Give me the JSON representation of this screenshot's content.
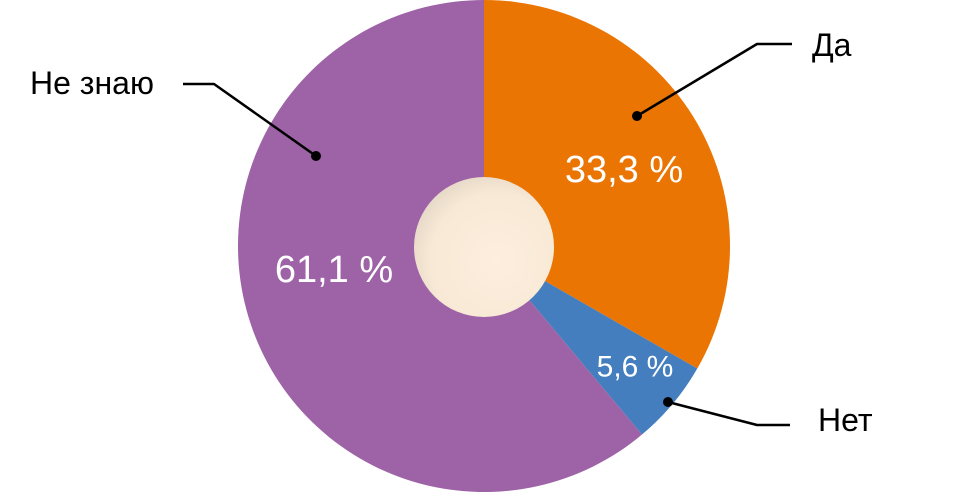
{
  "chart_data": {
    "type": "pie",
    "subtype": "donut",
    "title": "",
    "unit": "%",
    "decimal_separator": ",",
    "start_angle_deg": 0,
    "direction": "clockwise",
    "legend_position": "callouts",
    "background": "#FFFFFF",
    "inside_label_color": "#FFFFFF",
    "callout_text_color": "#000000",
    "callout_line_color": "#000000",
    "hole": {
      "color_center": "#FDEEDE",
      "color_mid": "#F8E9D6",
      "color_edge": "#D8CBBC"
    },
    "slices": [
      {
        "label": "Да",
        "value": 33.3,
        "pct_label": "33,3 %",
        "color": "#EA7503"
      },
      {
        "label": "Нет",
        "value": 5.6,
        "pct_label": "5,6 %",
        "color": "#447EBE"
      },
      {
        "label": "Не знаю",
        "value": 61.1,
        "pct_label": "61,1 %",
        "color": "#9D63A6"
      }
    ]
  }
}
